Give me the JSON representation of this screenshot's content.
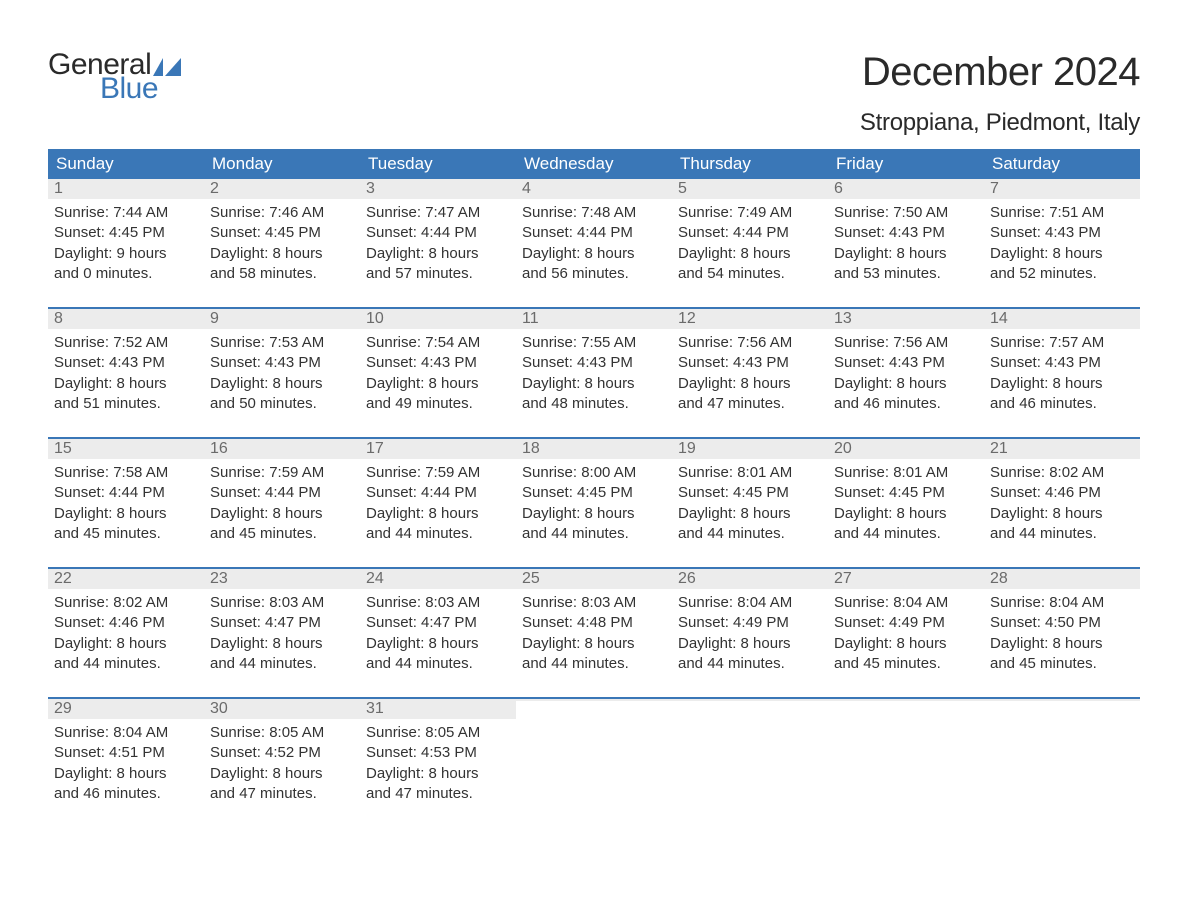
{
  "logo": {
    "general": "General",
    "blue": "Blue"
  },
  "header": {
    "month_title": "December 2024",
    "location": "Stroppiana, Piedmont, Italy"
  },
  "colors": {
    "header_bg": "#3a77b7",
    "header_text": "#ffffff",
    "daynum_bg": "#ececec",
    "daynum_text": "#6b6b6b",
    "body_text": "#333333",
    "week_border": "#3a77b7",
    "page_bg": "#ffffff",
    "logo_blue": "#3a77b7",
    "logo_dark": "#2a2a2a"
  },
  "day_headers": [
    "Sunday",
    "Monday",
    "Tuesday",
    "Wednesday",
    "Thursday",
    "Friday",
    "Saturday"
  ],
  "weeks": [
    [
      {
        "n": "1",
        "sr": "Sunrise: 7:44 AM",
        "ss": "Sunset: 4:45 PM",
        "d1": "Daylight: 9 hours",
        "d2": "and 0 minutes."
      },
      {
        "n": "2",
        "sr": "Sunrise: 7:46 AM",
        "ss": "Sunset: 4:45 PM",
        "d1": "Daylight: 8 hours",
        "d2": "and 58 minutes."
      },
      {
        "n": "3",
        "sr": "Sunrise: 7:47 AM",
        "ss": "Sunset: 4:44 PM",
        "d1": "Daylight: 8 hours",
        "d2": "and 57 minutes."
      },
      {
        "n": "4",
        "sr": "Sunrise: 7:48 AM",
        "ss": "Sunset: 4:44 PM",
        "d1": "Daylight: 8 hours",
        "d2": "and 56 minutes."
      },
      {
        "n": "5",
        "sr": "Sunrise: 7:49 AM",
        "ss": "Sunset: 4:44 PM",
        "d1": "Daylight: 8 hours",
        "d2": "and 54 minutes."
      },
      {
        "n": "6",
        "sr": "Sunrise: 7:50 AM",
        "ss": "Sunset: 4:43 PM",
        "d1": "Daylight: 8 hours",
        "d2": "and 53 minutes."
      },
      {
        "n": "7",
        "sr": "Sunrise: 7:51 AM",
        "ss": "Sunset: 4:43 PM",
        "d1": "Daylight: 8 hours",
        "d2": "and 52 minutes."
      }
    ],
    [
      {
        "n": "8",
        "sr": "Sunrise: 7:52 AM",
        "ss": "Sunset: 4:43 PM",
        "d1": "Daylight: 8 hours",
        "d2": "and 51 minutes."
      },
      {
        "n": "9",
        "sr": "Sunrise: 7:53 AM",
        "ss": "Sunset: 4:43 PM",
        "d1": "Daylight: 8 hours",
        "d2": "and 50 minutes."
      },
      {
        "n": "10",
        "sr": "Sunrise: 7:54 AM",
        "ss": "Sunset: 4:43 PM",
        "d1": "Daylight: 8 hours",
        "d2": "and 49 minutes."
      },
      {
        "n": "11",
        "sr": "Sunrise: 7:55 AM",
        "ss": "Sunset: 4:43 PM",
        "d1": "Daylight: 8 hours",
        "d2": "and 48 minutes."
      },
      {
        "n": "12",
        "sr": "Sunrise: 7:56 AM",
        "ss": "Sunset: 4:43 PM",
        "d1": "Daylight: 8 hours",
        "d2": "and 47 minutes."
      },
      {
        "n": "13",
        "sr": "Sunrise: 7:56 AM",
        "ss": "Sunset: 4:43 PM",
        "d1": "Daylight: 8 hours",
        "d2": "and 46 minutes."
      },
      {
        "n": "14",
        "sr": "Sunrise: 7:57 AM",
        "ss": "Sunset: 4:43 PM",
        "d1": "Daylight: 8 hours",
        "d2": "and 46 minutes."
      }
    ],
    [
      {
        "n": "15",
        "sr": "Sunrise: 7:58 AM",
        "ss": "Sunset: 4:44 PM",
        "d1": "Daylight: 8 hours",
        "d2": "and 45 minutes."
      },
      {
        "n": "16",
        "sr": "Sunrise: 7:59 AM",
        "ss": "Sunset: 4:44 PM",
        "d1": "Daylight: 8 hours",
        "d2": "and 45 minutes."
      },
      {
        "n": "17",
        "sr": "Sunrise: 7:59 AM",
        "ss": "Sunset: 4:44 PM",
        "d1": "Daylight: 8 hours",
        "d2": "and 44 minutes."
      },
      {
        "n": "18",
        "sr": "Sunrise: 8:00 AM",
        "ss": "Sunset: 4:45 PM",
        "d1": "Daylight: 8 hours",
        "d2": "and 44 minutes."
      },
      {
        "n": "19",
        "sr": "Sunrise: 8:01 AM",
        "ss": "Sunset: 4:45 PM",
        "d1": "Daylight: 8 hours",
        "d2": "and 44 minutes."
      },
      {
        "n": "20",
        "sr": "Sunrise: 8:01 AM",
        "ss": "Sunset: 4:45 PM",
        "d1": "Daylight: 8 hours",
        "d2": "and 44 minutes."
      },
      {
        "n": "21",
        "sr": "Sunrise: 8:02 AM",
        "ss": "Sunset: 4:46 PM",
        "d1": "Daylight: 8 hours",
        "d2": "and 44 minutes."
      }
    ],
    [
      {
        "n": "22",
        "sr": "Sunrise: 8:02 AM",
        "ss": "Sunset: 4:46 PM",
        "d1": "Daylight: 8 hours",
        "d2": "and 44 minutes."
      },
      {
        "n": "23",
        "sr": "Sunrise: 8:03 AM",
        "ss": "Sunset: 4:47 PM",
        "d1": "Daylight: 8 hours",
        "d2": "and 44 minutes."
      },
      {
        "n": "24",
        "sr": "Sunrise: 8:03 AM",
        "ss": "Sunset: 4:47 PM",
        "d1": "Daylight: 8 hours",
        "d2": "and 44 minutes."
      },
      {
        "n": "25",
        "sr": "Sunrise: 8:03 AM",
        "ss": "Sunset: 4:48 PM",
        "d1": "Daylight: 8 hours",
        "d2": "and 44 minutes."
      },
      {
        "n": "26",
        "sr": "Sunrise: 8:04 AM",
        "ss": "Sunset: 4:49 PM",
        "d1": "Daylight: 8 hours",
        "d2": "and 44 minutes."
      },
      {
        "n": "27",
        "sr": "Sunrise: 8:04 AM",
        "ss": "Sunset: 4:49 PM",
        "d1": "Daylight: 8 hours",
        "d2": "and 45 minutes."
      },
      {
        "n": "28",
        "sr": "Sunrise: 8:04 AM",
        "ss": "Sunset: 4:50 PM",
        "d1": "Daylight: 8 hours",
        "d2": "and 45 minutes."
      }
    ],
    [
      {
        "n": "29",
        "sr": "Sunrise: 8:04 AM",
        "ss": "Sunset: 4:51 PM",
        "d1": "Daylight: 8 hours",
        "d2": "and 46 minutes."
      },
      {
        "n": "30",
        "sr": "Sunrise: 8:05 AM",
        "ss": "Sunset: 4:52 PM",
        "d1": "Daylight: 8 hours",
        "d2": "and 47 minutes."
      },
      {
        "n": "31",
        "sr": "Sunrise: 8:05 AM",
        "ss": "Sunset: 4:53 PM",
        "d1": "Daylight: 8 hours",
        "d2": "and 47 minutes."
      },
      {
        "empty": true
      },
      {
        "empty": true
      },
      {
        "empty": true
      },
      {
        "empty": true
      }
    ]
  ]
}
